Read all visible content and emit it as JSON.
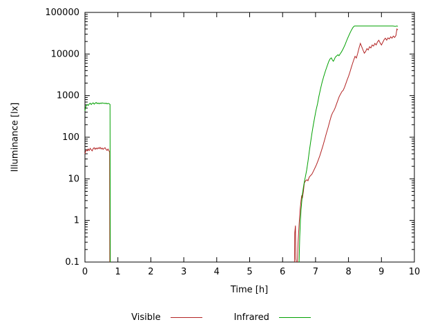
{
  "chart_data": {
    "type": "line",
    "title": "",
    "xlabel": "Time [h]",
    "ylabel": "Illuminance [lx]",
    "xlim": [
      0,
      10
    ],
    "ylim": [
      0.1,
      100000
    ],
    "xscale": "linear",
    "yscale": "log",
    "grid": false,
    "legend_position": "bottom-center",
    "x_ticks": [
      {
        "value": 0,
        "label": "0"
      },
      {
        "value": 1,
        "label": "1"
      },
      {
        "value": 2,
        "label": "2"
      },
      {
        "value": 3,
        "label": "3"
      },
      {
        "value": 4,
        "label": "4"
      },
      {
        "value": 5,
        "label": "5"
      },
      {
        "value": 6,
        "label": "6"
      },
      {
        "value": 7,
        "label": "7"
      },
      {
        "value": 8,
        "label": "8"
      },
      {
        "value": 9,
        "label": "9"
      },
      {
        "value": 10,
        "label": "10"
      }
    ],
    "y_ticks": [
      {
        "value": 0.1,
        "label": "0.1"
      },
      {
        "value": 1,
        "label": "1"
      },
      {
        "value": 10,
        "label": "10"
      },
      {
        "value": 100,
        "label": "100"
      },
      {
        "value": 1000,
        "label": "1000"
      },
      {
        "value": 10000,
        "label": "10000"
      },
      {
        "value": 100000,
        "label": "100000"
      }
    ],
    "series": [
      {
        "name": "Visible",
        "color": "#b22222",
        "segments": [
          [
            [
              0.0,
              40
            ],
            [
              0.02,
              46
            ],
            [
              0.05,
              50
            ],
            [
              0.08,
              47
            ],
            [
              0.1,
              52
            ],
            [
              0.13,
              48
            ],
            [
              0.16,
              54
            ],
            [
              0.19,
              50
            ],
            [
              0.22,
              47
            ],
            [
              0.25,
              53
            ],
            [
              0.28,
              56
            ],
            [
              0.31,
              51
            ],
            [
              0.34,
              55
            ],
            [
              0.37,
              52
            ],
            [
              0.4,
              56
            ],
            [
              0.43,
              53
            ],
            [
              0.46,
              57
            ],
            [
              0.49,
              52
            ],
            [
              0.52,
              55
            ],
            [
              0.55,
              51
            ],
            [
              0.58,
              54
            ],
            [
              0.61,
              56
            ],
            [
              0.64,
              51
            ],
            [
              0.67,
              48
            ],
            [
              0.7,
              52
            ],
            [
              0.73,
              47
            ],
            [
              0.75,
              44
            ],
            [
              0.755,
              0.1
            ]
          ],
          [
            [
              6.36,
              0.1
            ],
            [
              6.37,
              0.5
            ],
            [
              6.39,
              0.75
            ],
            [
              6.4,
              0.12
            ],
            [
              6.42,
              0.1
            ]
          ],
          [
            [
              6.45,
              0.1
            ],
            [
              6.47,
              0.3
            ],
            [
              6.5,
              0.8
            ],
            [
              6.53,
              1.8
            ],
            [
              6.56,
              3.0
            ],
            [
              6.58,
              4.0
            ],
            [
              6.6,
              3.4
            ],
            [
              6.63,
              5
            ],
            [
              6.66,
              8
            ],
            [
              6.7,
              9
            ],
            [
              6.74,
              9.5
            ],
            [
              6.77,
              9
            ],
            [
              6.81,
              11
            ],
            [
              6.85,
              12
            ],
            [
              6.89,
              13
            ],
            [
              6.93,
              15
            ],
            [
              6.98,
              18
            ],
            [
              7.03,
              22
            ],
            [
              7.08,
              28
            ],
            [
              7.13,
              36
            ],
            [
              7.18,
              48
            ],
            [
              7.23,
              65
            ],
            [
              7.28,
              90
            ],
            [
              7.33,
              125
            ],
            [
              7.38,
              170
            ],
            [
              7.43,
              240
            ],
            [
              7.48,
              330
            ],
            [
              7.52,
              390
            ],
            [
              7.56,
              440
            ],
            [
              7.6,
              520
            ],
            [
              7.64,
              640
            ],
            [
              7.68,
              780
            ],
            [
              7.72,
              950
            ],
            [
              7.76,
              1100
            ],
            [
              7.8,
              1250
            ],
            [
              7.84,
              1350
            ],
            [
              7.88,
              1600
            ],
            [
              7.92,
              1950
            ],
            [
              7.96,
              2400
            ],
            [
              8.0,
              2900
            ],
            [
              8.04,
              3600
            ],
            [
              8.08,
              4600
            ],
            [
              8.12,
              5800
            ],
            [
              8.16,
              7200
            ],
            [
              8.2,
              8800
            ],
            [
              8.24,
              8000
            ],
            [
              8.28,
              10500
            ],
            [
              8.32,
              14000
            ],
            [
              8.36,
              18000
            ],
            [
              8.4,
              15000
            ],
            [
              8.44,
              12500
            ],
            [
              8.48,
              10500
            ],
            [
              8.52,
              11500
            ],
            [
              8.56,
              13500
            ],
            [
              8.6,
              12500
            ],
            [
              8.64,
              15000
            ],
            [
              8.68,
              14000
            ],
            [
              8.72,
              16500
            ],
            [
              8.76,
              15500
            ],
            [
              8.8,
              18000
            ],
            [
              8.84,
              16500
            ],
            [
              8.88,
              19500
            ],
            [
              8.92,
              21500
            ],
            [
              8.96,
              18500
            ],
            [
              9.0,
              16500
            ],
            [
              9.04,
              19000
            ],
            [
              9.08,
              22000
            ],
            [
              9.12,
              24000
            ],
            [
              9.16,
              21500
            ],
            [
              9.2,
              24500
            ],
            [
              9.24,
              23000
            ],
            [
              9.28,
              26000
            ],
            [
              9.32,
              24000
            ],
            [
              9.36,
              27000
            ],
            [
              9.4,
              25000
            ],
            [
              9.44,
              28000
            ],
            [
              9.47,
              40000
            ],
            [
              9.5,
              38000
            ]
          ]
        ]
      },
      {
        "name": "Infrared",
        "color": "#00a000",
        "segments": [
          [
            [
              0.0,
              430
            ],
            [
              0.02,
              520
            ],
            [
              0.04,
              580
            ],
            [
              0.07,
              610
            ],
            [
              0.1,
              580
            ],
            [
              0.13,
              630
            ],
            [
              0.16,
              660
            ],
            [
              0.19,
              610
            ],
            [
              0.22,
              650
            ],
            [
              0.25,
              670
            ],
            [
              0.28,
              625
            ],
            [
              0.31,
              655
            ],
            [
              0.34,
              685
            ],
            [
              0.37,
              645
            ],
            [
              0.4,
              665
            ],
            [
              0.43,
              635
            ],
            [
              0.46,
              665
            ],
            [
              0.49,
              645
            ],
            [
              0.52,
              672
            ],
            [
              0.55,
              652
            ],
            [
              0.58,
              662
            ],
            [
              0.61,
              642
            ],
            [
              0.64,
              662
            ],
            [
              0.67,
              632
            ],
            [
              0.7,
              652
            ],
            [
              0.73,
              642
            ],
            [
              0.76,
              615
            ],
            [
              0.77,
              0.1
            ]
          ],
          [
            [
              6.5,
              0.1
            ],
            [
              6.52,
              0.4
            ],
            [
              6.54,
              1.0
            ],
            [
              6.56,
              1.8
            ],
            [
              6.58,
              2.8
            ],
            [
              6.6,
              4.2
            ],
            [
              6.63,
              6.2
            ],
            [
              6.66,
              8.5
            ],
            [
              6.69,
              11
            ],
            [
              6.73,
              16
            ],
            [
              6.77,
              26
            ],
            [
              6.81,
              45
            ],
            [
              6.85,
              75
            ],
            [
              6.89,
              125
            ],
            [
              6.93,
              195
            ],
            [
              6.97,
              290
            ],
            [
              7.01,
              430
            ],
            [
              7.06,
              640
            ],
            [
              7.1,
              950
            ],
            [
              7.15,
              1450
            ],
            [
              7.2,
              2100
            ],
            [
              7.25,
              2900
            ],
            [
              7.3,
              3900
            ],
            [
              7.35,
              5100
            ],
            [
              7.4,
              6600
            ],
            [
              7.44,
              7600
            ],
            [
              7.48,
              8100
            ],
            [
              7.51,
              7200
            ],
            [
              7.54,
              6700
            ],
            [
              7.57,
              7400
            ],
            [
              7.6,
              8400
            ],
            [
              7.64,
              9000
            ],
            [
              7.68,
              9600
            ],
            [
              7.71,
              9100
            ],
            [
              7.74,
              9900
            ],
            [
              7.78,
              11000
            ],
            [
              7.82,
              12500
            ],
            [
              7.86,
              14500
            ],
            [
              7.9,
              17000
            ],
            [
              7.94,
              20500
            ],
            [
              7.98,
              24500
            ],
            [
              8.02,
              29000
            ],
            [
              8.06,
              34000
            ],
            [
              8.1,
              39000
            ],
            [
              8.14,
              44000
            ],
            [
              8.18,
              47000
            ],
            [
              8.3,
              47000
            ],
            [
              8.45,
              47000
            ],
            [
              8.6,
              47000
            ],
            [
              8.75,
              47000
            ],
            [
              8.9,
              47000
            ],
            [
              9.05,
              47000
            ],
            [
              9.2,
              47000
            ],
            [
              9.35,
              47000
            ],
            [
              9.42,
              46000
            ],
            [
              9.46,
              47000
            ],
            [
              9.5,
              46500
            ]
          ]
        ]
      }
    ]
  }
}
